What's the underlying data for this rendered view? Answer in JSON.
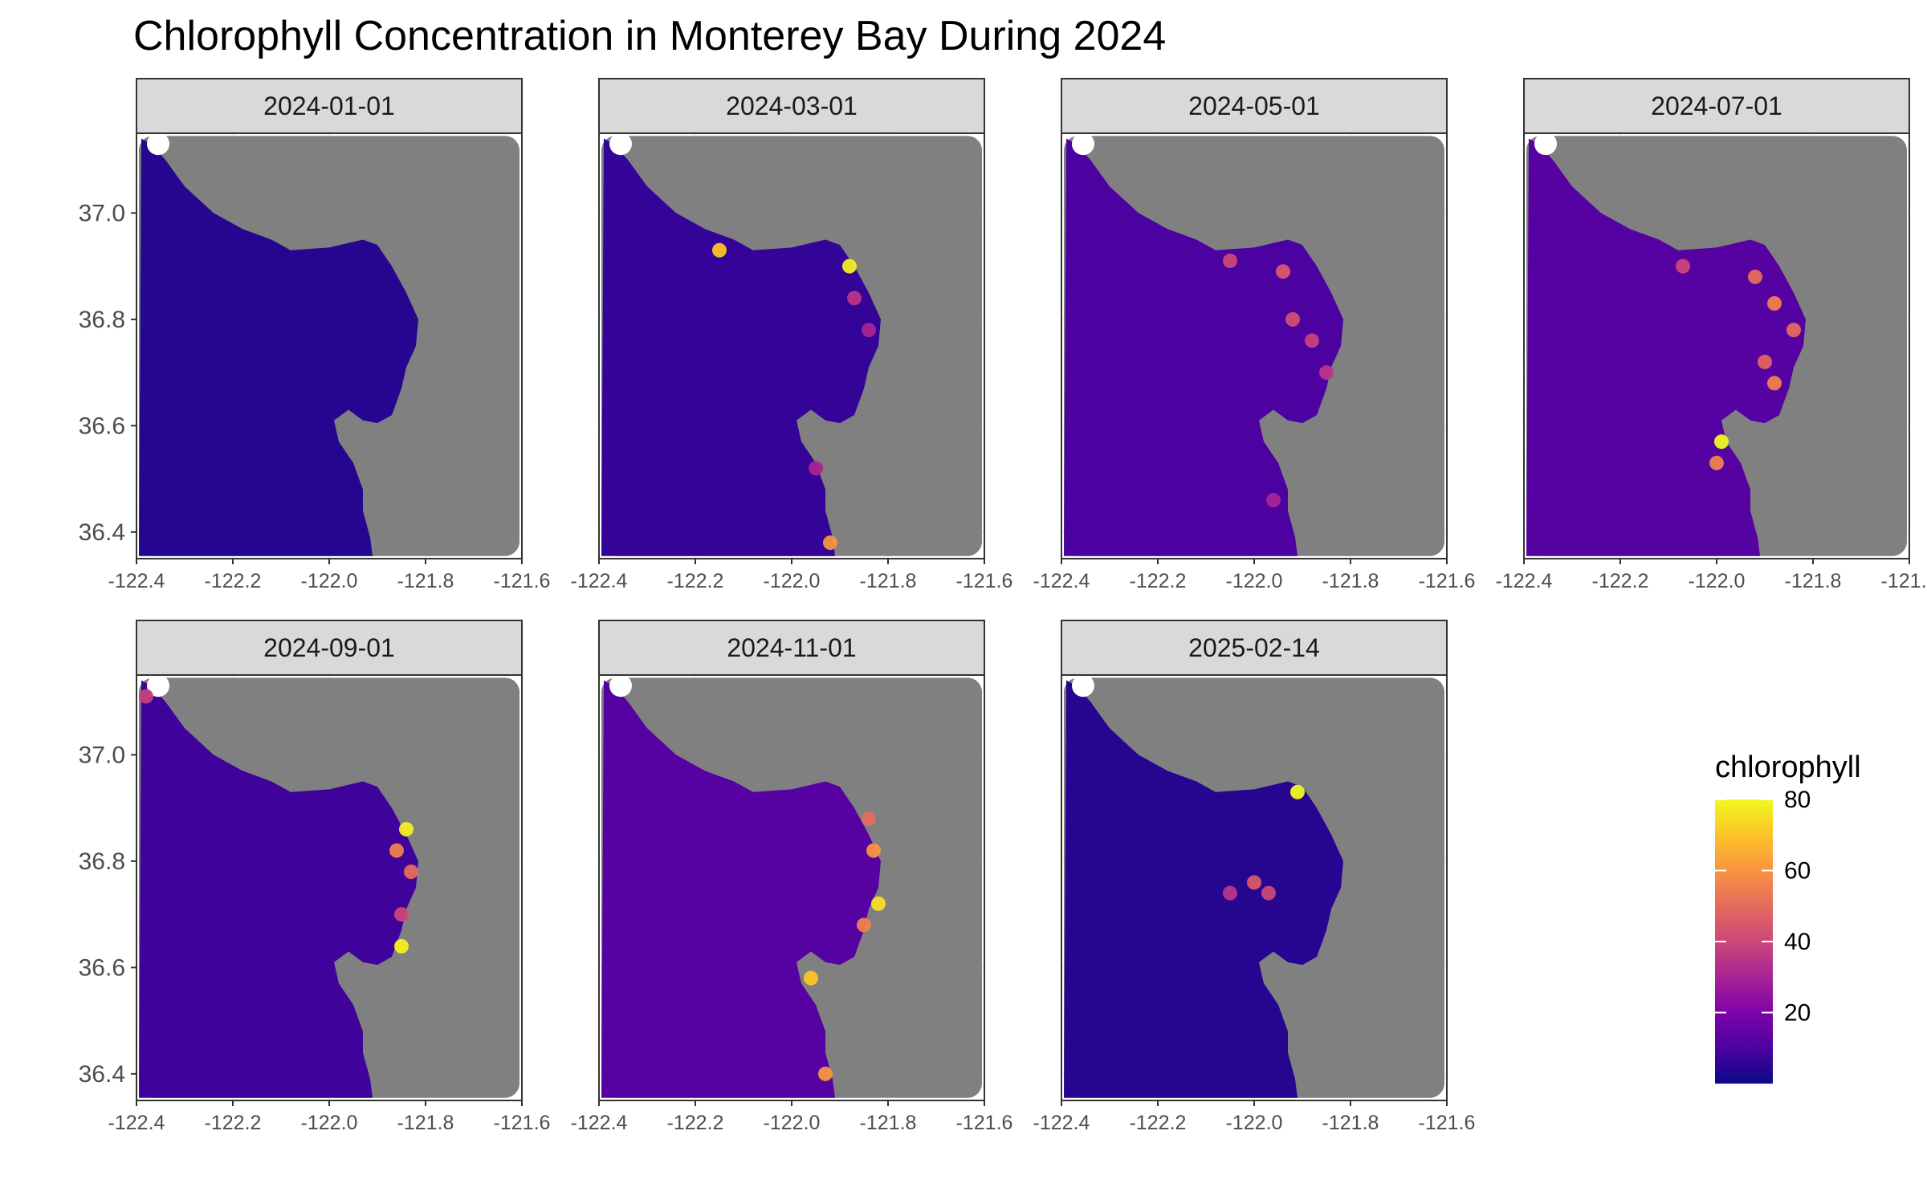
{
  "chart_data": {
    "type": "heatmap",
    "title": "Chlorophyll Concentration in Monterey Bay During 2024",
    "xlabel": "",
    "ylabel": "",
    "xlim": [
      -122.4,
      -121.6
    ],
    "ylim": [
      36.35,
      37.15
    ],
    "x_ticks": [
      "-122.4",
      "-122.2",
      "-122.0",
      "-121.8",
      "-121.6"
    ],
    "y_ticks": [
      "36.4",
      "36.6",
      "36.8",
      "37.0"
    ],
    "land_color": "#808080",
    "colormap": "plasma",
    "grid": true,
    "legend": {
      "title": "chlorophyll",
      "position": "right",
      "range": [
        0,
        80
      ],
      "ticks": [
        "20",
        "40",
        "60",
        "80"
      ]
    },
    "panels": [
      {
        "label": "2024-01-01",
        "background": 4,
        "hotspots": []
      },
      {
        "label": "2024-03-01",
        "background": 6,
        "hotspots": [
          {
            "lon": -122.15,
            "lat": 36.93,
            "value": 70
          },
          {
            "lon": -121.88,
            "lat": 36.9,
            "value": 78
          },
          {
            "lon": -121.87,
            "lat": 36.84,
            "value": 35
          },
          {
            "lon": -121.84,
            "lat": 36.78,
            "value": 30
          },
          {
            "lon": -121.95,
            "lat": 36.52,
            "value": 30
          },
          {
            "lon": -121.92,
            "lat": 36.38,
            "value": 60
          }
        ]
      },
      {
        "label": "2024-05-01",
        "background": 10,
        "hotspots": [
          {
            "lon": -122.05,
            "lat": 36.91,
            "value": 40
          },
          {
            "lon": -121.94,
            "lat": 36.89,
            "value": 45
          },
          {
            "lon": -121.92,
            "lat": 36.8,
            "value": 42
          },
          {
            "lon": -121.88,
            "lat": 36.76,
            "value": 38
          },
          {
            "lon": -121.85,
            "lat": 36.7,
            "value": 35
          },
          {
            "lon": -121.96,
            "lat": 36.46,
            "value": 30
          }
        ]
      },
      {
        "label": "2024-07-01",
        "background": 12,
        "hotspots": [
          {
            "lon": -122.07,
            "lat": 36.9,
            "value": 40
          },
          {
            "lon": -121.92,
            "lat": 36.88,
            "value": 50
          },
          {
            "lon": -121.88,
            "lat": 36.83,
            "value": 55
          },
          {
            "lon": -121.84,
            "lat": 36.78,
            "value": 50
          },
          {
            "lon": -121.9,
            "lat": 36.72,
            "value": 48
          },
          {
            "lon": -121.88,
            "lat": 36.68,
            "value": 55
          },
          {
            "lon": -121.99,
            "lat": 36.57,
            "value": 80
          },
          {
            "lon": -122.0,
            "lat": 36.53,
            "value": 55
          }
        ]
      },
      {
        "label": "2024-09-01",
        "background": 8,
        "hotspots": [
          {
            "lon": -122.38,
            "lat": 37.11,
            "value": 38
          },
          {
            "lon": -121.84,
            "lat": 36.86,
            "value": 78
          },
          {
            "lon": -121.86,
            "lat": 36.82,
            "value": 55
          },
          {
            "lon": -121.83,
            "lat": 36.78,
            "value": 50
          },
          {
            "lon": -121.85,
            "lat": 36.7,
            "value": 40
          },
          {
            "lon": -121.85,
            "lat": 36.64,
            "value": 78
          }
        ]
      },
      {
        "label": "2024-11-01",
        "background": 12,
        "hotspots": [
          {
            "lon": -121.84,
            "lat": 36.88,
            "value": 50
          },
          {
            "lon": -121.83,
            "lat": 36.82,
            "value": 60
          },
          {
            "lon": -121.82,
            "lat": 36.72,
            "value": 75
          },
          {
            "lon": -121.85,
            "lat": 36.68,
            "value": 55
          },
          {
            "lon": -121.96,
            "lat": 36.58,
            "value": 70
          },
          {
            "lon": -121.93,
            "lat": 36.4,
            "value": 60
          }
        ]
      },
      {
        "label": "2025-02-14",
        "background": 4,
        "hotspots": [
          {
            "lon": -121.91,
            "lat": 36.93,
            "value": 80
          },
          {
            "lon": -122.0,
            "lat": 36.76,
            "value": 45
          },
          {
            "lon": -121.97,
            "lat": 36.74,
            "value": 40
          },
          {
            "lon": -122.05,
            "lat": 36.74,
            "value": 35
          }
        ]
      }
    ]
  }
}
